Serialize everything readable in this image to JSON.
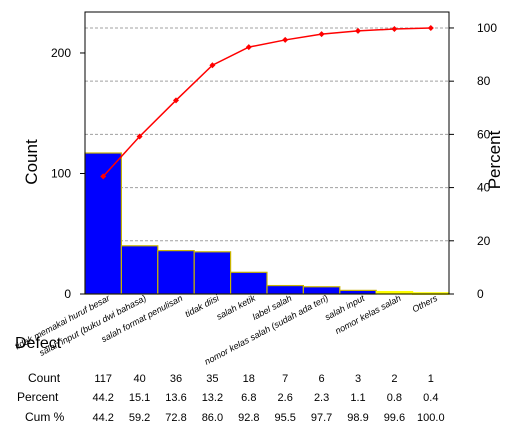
{
  "chart_data": {
    "type": "bar",
    "ylabel_left": "Count",
    "ylabel_right": "Percent",
    "ylim_left": [
      0,
      234
    ],
    "ylim_right": [
      0,
      106
    ],
    "yticks_left": [
      "0",
      "100",
      "200"
    ],
    "yticks_right": [
      "0",
      "20",
      "40",
      "60",
      "80",
      "100"
    ],
    "grid": true,
    "table_row_labels": {
      "defect": "Defect",
      "count": "Count",
      "percent": "Percent",
      "cum": "Cum %"
    },
    "categories": [
      "tidak memakai huruf besar",
      "salah input (buku dwi bahasa)",
      "salah format penulisan",
      "tidak diisi",
      "salah ketik",
      "label salah",
      "nomor kelas salah (sudah ada teri)",
      "salah input",
      "nomor kelas salah",
      "Others"
    ],
    "counts_text": [
      "117",
      "40",
      "36",
      "35",
      "18",
      "7",
      "6",
      "3",
      "2",
      "1"
    ],
    "percent_text": [
      "44.2",
      "15.1",
      "13.6",
      "13.2",
      "6.8",
      "2.6",
      "2.3",
      "1.1",
      "0.8",
      "0.4"
    ],
    "cum_text": [
      "44.2",
      "59.2",
      "72.8",
      "86.0",
      "92.8",
      "95.5",
      "97.7",
      "98.9",
      "99.6",
      "100.0"
    ],
    "series": [
      {
        "type": "bar",
        "values": [
          117,
          40,
          36,
          35,
          18,
          7,
          6,
          3,
          2,
          1
        ]
      },
      {
        "type": "line",
        "axis": "right",
        "values": [
          44.2,
          59.2,
          72.8,
          86.0,
          92.8,
          95.5,
          97.7,
          98.9,
          99.6,
          100.0
        ]
      }
    ],
    "colors": {
      "bar_fill": "#0000ff",
      "bar_edge": "#c8b400",
      "small_bar": "#ffff00",
      "line": "#ff0000",
      "grid": "#a0a0a0"
    }
  }
}
